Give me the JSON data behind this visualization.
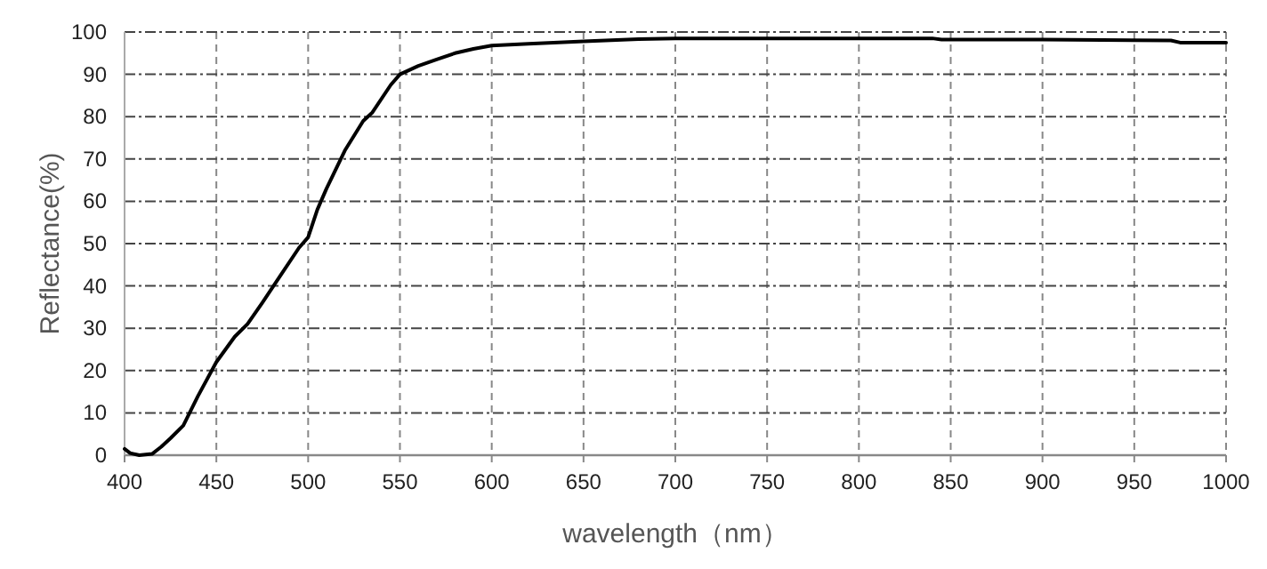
{
  "chart_data": {
    "type": "line",
    "xlabel": "wavelength（nm）",
    "ylabel": "Reflectance(%)",
    "x": [
      400,
      403,
      408,
      415,
      420,
      425,
      432,
      440,
      450,
      460,
      467,
      475,
      485,
      495,
      500,
      505,
      510,
      520,
      530,
      535,
      545,
      550,
      560,
      570,
      580,
      590,
      600,
      620,
      650,
      680,
      700,
      800,
      840,
      845,
      900,
      970,
      975,
      1000
    ],
    "series": [
      {
        "color": "#000000",
        "values": [
          1.5,
          0.5,
          0,
          0.3,
          2,
          4,
          7,
          14,
          22,
          28,
          31,
          36,
          42.5,
          49,
          51.5,
          58,
          63,
          72,
          79,
          81,
          87.5,
          90,
          92,
          93.5,
          95,
          96,
          96.8,
          97.2,
          97.8,
          98.3,
          98.5,
          98.5,
          98.5,
          98.2,
          98.2,
          98,
          97.5,
          97.5
        ]
      }
    ],
    "xlim": [
      400,
      1000
    ],
    "ylim": [
      0,
      100
    ],
    "xticks": [
      400,
      450,
      500,
      550,
      600,
      650,
      700,
      750,
      800,
      850,
      900,
      950,
      1000
    ],
    "yticks": [
      0,
      10,
      20,
      30,
      40,
      50,
      60,
      70,
      80,
      90,
      100
    ],
    "grid": true,
    "marker": "none",
    "line_style": "solid"
  }
}
